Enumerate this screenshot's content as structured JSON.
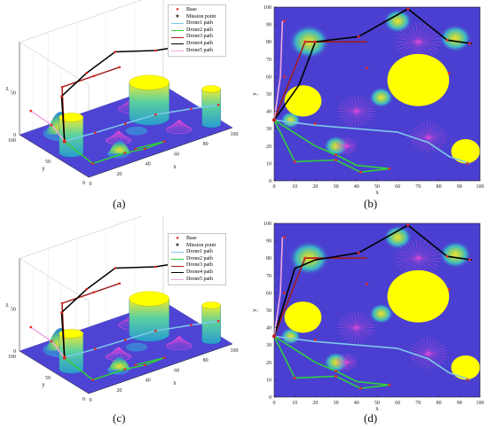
{
  "panel_labels": [
    "(a)",
    "(b)",
    "(c)",
    "(d)"
  ],
  "legend": [
    {
      "marker": "dot",
      "label": "Base",
      "color": "#e8261c"
    },
    {
      "marker": "star",
      "label": "Mission point",
      "color": "#222222"
    },
    {
      "marker": "line",
      "label": "Drone1 path",
      "color": "#7ec8e8"
    },
    {
      "marker": "line",
      "label": "Drone2 path",
      "color": "#2fd13a"
    },
    {
      "marker": "line",
      "label": "Drone3 path",
      "color": "#a11d1d"
    },
    {
      "marker": "line",
      "label": "Drone4 path",
      "color": "#000000"
    },
    {
      "marker": "line",
      "label": "Drone5 path",
      "color": "#f0a8e0"
    }
  ],
  "axes3d": {
    "xlabel": "x",
    "ylabel": "y",
    "zlabel": "z",
    "xticks": [
      "0",
      "20",
      "40",
      "60",
      "80",
      "100"
    ],
    "yticks": [
      "0",
      "50",
      "100"
    ],
    "zticks": [
      "0",
      "50"
    ]
  },
  "axes2d": {
    "xlabel": "x",
    "ylabel": "y",
    "xticks": [
      "0",
      "10",
      "20",
      "30",
      "40",
      "50",
      "60",
      "70",
      "80",
      "90",
      "100"
    ],
    "yticks": [
      "0",
      "10",
      "20",
      "30",
      "40",
      "50",
      "60",
      "70",
      "80",
      "90",
      "100"
    ]
  },
  "chart_data": [
    {
      "type": "line",
      "view": "3d",
      "xlim": [
        0,
        100
      ],
      "ylim": [
        0,
        100
      ],
      "base": [
        0,
        35
      ],
      "obstacles_cylinders": [
        {
          "cx": 70,
          "cy": 58,
          "r": 15
        },
        {
          "cx": 10,
          "cy": 46,
          "r": 9
        },
        {
          "cx": 93,
          "cy": 16,
          "r": 7
        }
      ],
      "series": [
        {
          "name": "Drone1 path",
          "points": [
            [
              0,
              35
            ],
            [
              20,
              32
            ],
            [
              40,
              30
            ],
            [
              60,
              28
            ],
            [
              80,
              18
            ],
            [
              95,
              10
            ]
          ]
        },
        {
          "name": "Drone2 path",
          "points": [
            [
              0,
              35
            ],
            [
              8,
              11
            ],
            [
              30,
              10
            ],
            [
              42,
              6
            ],
            [
              56,
              7
            ],
            [
              38,
              11
            ]
          ]
        },
        {
          "name": "Drone3 path",
          "points": [
            [
              0,
              35
            ],
            [
              20,
              80
            ],
            [
              42,
              80
            ],
            [
              60,
              80
            ]
          ]
        },
        {
          "name": "Drone4 path",
          "points": [
            [
              0,
              35
            ],
            [
              10,
              60
            ],
            [
              38,
              82
            ],
            [
              66,
              99
            ],
            [
              85,
              80
            ],
            [
              95,
              75
            ]
          ]
        },
        {
          "name": "Drone5 path",
          "points": [
            [
              0,
              35
            ],
            [
              3,
              60
            ],
            [
              4,
              92
            ]
          ]
        }
      ]
    },
    {
      "type": "line",
      "view": "2d",
      "xlim": [
        0,
        100
      ],
      "ylim": [
        0,
        100
      ],
      "base": [
        0,
        35
      ],
      "mission_points": [
        [
          5,
          92
        ],
        [
          15,
          80
        ],
        [
          20,
          80
        ],
        [
          41,
          83
        ],
        [
          65,
          99
        ],
        [
          84,
          81
        ],
        [
          95,
          79
        ],
        [
          20,
          33
        ],
        [
          45,
          65
        ],
        [
          85,
          62
        ],
        [
          94,
          10
        ],
        [
          30,
          15
        ],
        [
          30,
          12
        ],
        [
          42,
          5
        ],
        [
          56,
          7
        ],
        [
          10,
          11
        ],
        [
          5,
          60
        ]
      ],
      "obstacles_circles": [
        {
          "cx": 70,
          "cy": 58,
          "r": 15
        },
        {
          "cx": 14,
          "cy": 46,
          "r": 9
        },
        {
          "cx": 93,
          "cy": 17,
          "r": 7
        }
      ],
      "series": [
        {
          "name": "Drone1 path",
          "points": [
            [
              0,
              35
            ],
            [
              20,
              32
            ],
            [
              40,
              30
            ],
            [
              60,
              28
            ],
            [
              75,
              22
            ],
            [
              85,
              14
            ],
            [
              95,
              10
            ]
          ]
        },
        {
          "name": "Drone2 path",
          "points": [
            [
              0,
              35
            ],
            [
              10,
              11
            ],
            [
              30,
              12
            ],
            [
              42,
              5
            ],
            [
              56,
              7
            ],
            [
              40,
              9
            ],
            [
              30,
              15
            ],
            [
              20,
              20
            ],
            [
              0,
              35
            ]
          ]
        },
        {
          "name": "Drone3 path",
          "points": [
            [
              0,
              35
            ],
            [
              15,
              80
            ],
            [
              30,
              80
            ],
            [
              45,
              80
            ]
          ]
        },
        {
          "name": "Drone4 path",
          "points": [
            [
              0,
              35
            ],
            [
              12,
              55
            ],
            [
              20,
              80
            ],
            [
              41,
              83
            ],
            [
              65,
              99
            ],
            [
              84,
              81
            ],
            [
              96,
              79
            ]
          ]
        },
        {
          "name": "Drone5 path",
          "points": [
            [
              0,
              35
            ],
            [
              3,
              60
            ],
            [
              4,
              92
            ]
          ]
        }
      ]
    },
    {
      "type": "line",
      "view": "3d",
      "xlim": [
        0,
        100
      ],
      "ylim": [
        0,
        100
      ],
      "base": [
        0,
        35
      ],
      "obstacles_cylinders": [
        {
          "cx": 70,
          "cy": 58,
          "r": 15
        },
        {
          "cx": 10,
          "cy": 46,
          "r": 9
        },
        {
          "cx": 93,
          "cy": 16,
          "r": 7
        }
      ],
      "series": [
        {
          "name": "Drone1 path",
          "points": [
            [
              0,
              35
            ],
            [
              20,
              32
            ],
            [
              40,
              30
            ],
            [
              60,
              28
            ],
            [
              80,
              18
            ],
            [
              95,
              10
            ]
          ]
        },
        {
          "name": "Drone2 path",
          "points": [
            [
              0,
              35
            ],
            [
              8,
              11
            ],
            [
              30,
              10
            ],
            [
              42,
              6
            ],
            [
              56,
              7
            ],
            [
              38,
              11
            ]
          ]
        },
        {
          "name": "Drone3 path",
          "points": [
            [
              0,
              35
            ],
            [
              20,
              80
            ],
            [
              42,
              80
            ],
            [
              60,
              80
            ]
          ]
        },
        {
          "name": "Drone4 path",
          "points": [
            [
              0,
              35
            ],
            [
              10,
              60
            ],
            [
              38,
              82
            ],
            [
              66,
              99
            ],
            [
              85,
              80
            ],
            [
              95,
              75
            ]
          ]
        },
        {
          "name": "Drone5 path",
          "points": [
            [
              0,
              35
            ],
            [
              3,
              60
            ],
            [
              4,
              92
            ]
          ]
        }
      ]
    },
    {
      "type": "line",
      "view": "2d",
      "xlim": [
        0,
        100
      ],
      "ylim": [
        0,
        100
      ],
      "base": [
        0,
        35
      ],
      "mission_points": [
        [
          5,
          92
        ],
        [
          15,
          80
        ],
        [
          20,
          80
        ],
        [
          41,
          83
        ],
        [
          65,
          99
        ],
        [
          84,
          81
        ],
        [
          95,
          79
        ],
        [
          20,
          33
        ],
        [
          45,
          65
        ],
        [
          85,
          62
        ],
        [
          94,
          10
        ],
        [
          30,
          15
        ],
        [
          30,
          12
        ],
        [
          42,
          5
        ],
        [
          56,
          7
        ],
        [
          10,
          11
        ],
        [
          5,
          60
        ]
      ],
      "obstacles_circles": [
        {
          "cx": 70,
          "cy": 58,
          "r": 15
        },
        {
          "cx": 14,
          "cy": 46,
          "r": 9
        },
        {
          "cx": 93,
          "cy": 17,
          "r": 7
        }
      ],
      "series": [
        {
          "name": "Drone1 path",
          "points": [
            [
              0,
              35
            ],
            [
              20,
              32
            ],
            [
              40,
              30
            ],
            [
              60,
              28
            ],
            [
              75,
              22
            ],
            [
              85,
              14
            ],
            [
              95,
              10
            ]
          ]
        },
        {
          "name": "Drone2 path",
          "points": [
            [
              0,
              35
            ],
            [
              10,
              11
            ],
            [
              30,
              12
            ],
            [
              42,
              5
            ],
            [
              56,
              7
            ],
            [
              40,
              9
            ],
            [
              30,
              15
            ],
            [
              20,
              20
            ],
            [
              0,
              35
            ]
          ]
        },
        {
          "name": "Drone3 path",
          "points": [
            [
              0,
              35
            ],
            [
              15,
              80
            ],
            [
              30,
              80
            ],
            [
              45,
              80
            ]
          ]
        },
        {
          "name": "Drone4 path",
          "points": [
            [
              0,
              35
            ],
            [
              10,
              74
            ],
            [
              20,
              79
            ],
            [
              41,
              83
            ],
            [
              65,
              99
            ],
            [
              84,
              81
            ],
            [
              96,
              79
            ]
          ]
        },
        {
          "name": "Drone5 path",
          "points": [
            [
              0,
              35
            ],
            [
              3,
              60
            ],
            [
              4,
              92
            ]
          ]
        }
      ]
    }
  ]
}
